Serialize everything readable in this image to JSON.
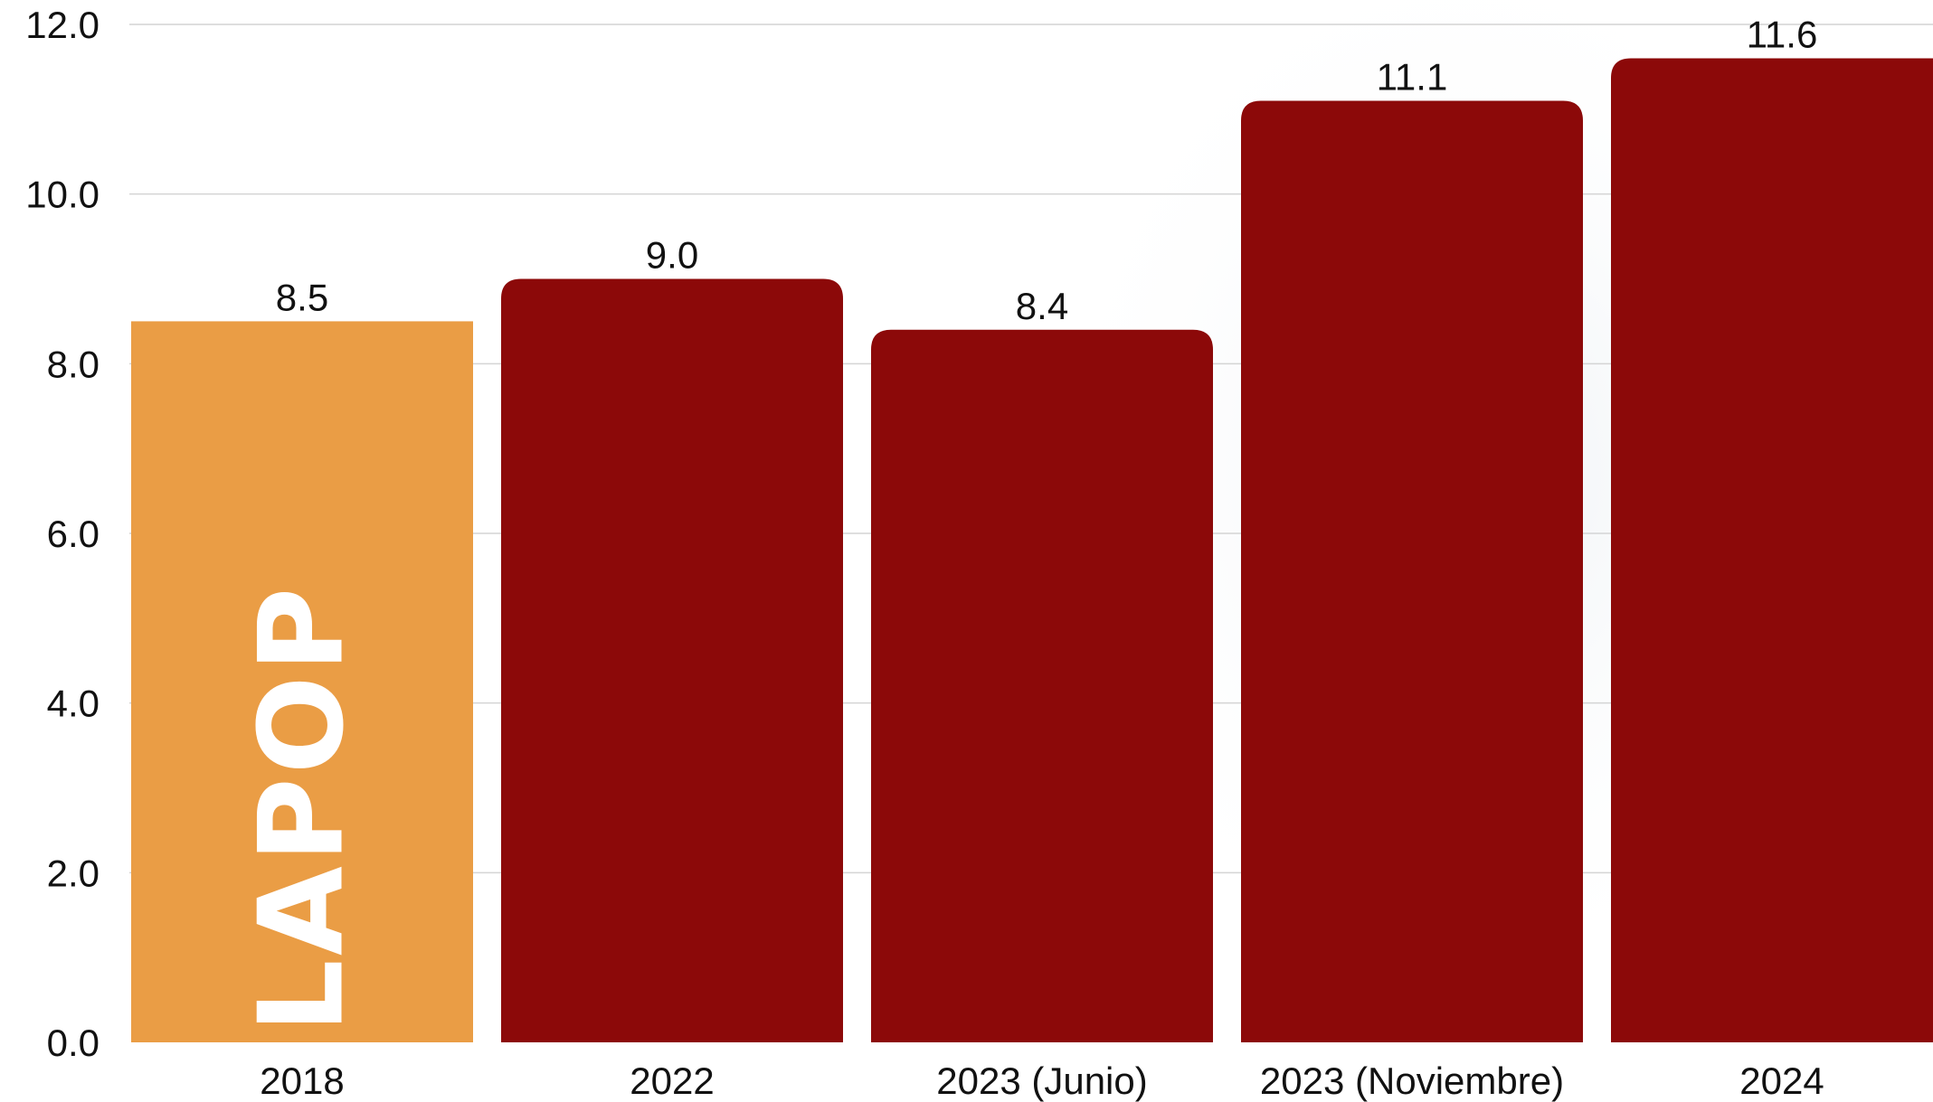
{
  "chart_data": {
    "type": "bar",
    "title": "",
    "xlabel": "",
    "ylabel": "",
    "categories": [
      "2018",
      "2022",
      "2023 (Junio)",
      "2023 (Noviembre)",
      "2024"
    ],
    "values": [
      8.5,
      9.0,
      8.4,
      11.1,
      11.6
    ],
    "value_labels": [
      "8.5",
      "9.0",
      "8.4",
      "11.1",
      "11.6"
    ],
    "bar_colors": [
      "#EA9D45",
      "#8C0909",
      "#8C0909",
      "#8C0909",
      "#8C0909"
    ],
    "bar_inner_labels": [
      "LAPOP",
      "",
      "",
      "",
      ""
    ],
    "ylim": [
      0,
      12
    ],
    "yticks": [
      "0.0",
      "2.0",
      "4.0",
      "6.0",
      "8.0",
      "10.0",
      "12.0"
    ],
    "grid": true,
    "legend": "none"
  }
}
